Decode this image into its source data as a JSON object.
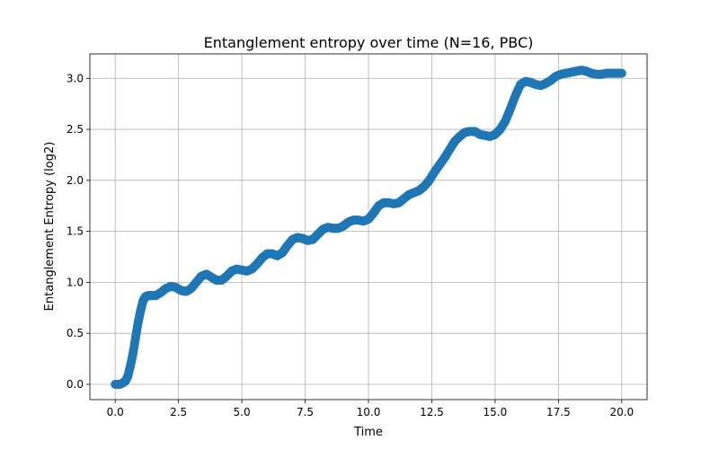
{
  "chart_data": {
    "type": "scatter",
    "title": "Entanglement entropy over time (N=16, PBC)",
    "xlabel": "Time",
    "ylabel": "Entanglement Entropy (log2)",
    "xlim": [
      -1.0,
      21.0
    ],
    "ylim": [
      -0.15,
      3.24
    ],
    "xticks": [
      0.0,
      2.5,
      5.0,
      7.5,
      10.0,
      12.5,
      15.0,
      17.5,
      20.0
    ],
    "xtick_labels": [
      "0.0",
      "2.5",
      "5.0",
      "7.5",
      "10.0",
      "12.5",
      "15.0",
      "17.5",
      "20.0"
    ],
    "yticks": [
      0.0,
      0.5,
      1.0,
      1.5,
      2.0,
      2.5,
      3.0
    ],
    "ytick_labels": [
      "0.0",
      "0.5",
      "1.0",
      "1.5",
      "2.0",
      "2.5",
      "3.0"
    ],
    "grid": true,
    "color": "#1f77b4",
    "series": [
      {
        "x": [
          0.0,
          0.2,
          0.4,
          0.5,
          0.6,
          0.7,
          0.8,
          0.9,
          1.0,
          1.1,
          1.2,
          1.3,
          1.4,
          1.6,
          1.8,
          2.0,
          2.2,
          2.4,
          2.6,
          2.8,
          3.0,
          3.2,
          3.4,
          3.6,
          3.8,
          4.0,
          4.2,
          4.4,
          4.6,
          4.8,
          5.0,
          5.2,
          5.4,
          5.6,
          5.8,
          6.0,
          6.2,
          6.4,
          6.6,
          6.8,
          7.0,
          7.2,
          7.4,
          7.6,
          7.8,
          8.0,
          8.2,
          8.4,
          8.6,
          8.8,
          9.0,
          9.2,
          9.4,
          9.6,
          9.8,
          10.0,
          10.2,
          10.4,
          10.6,
          10.8,
          11.0,
          11.2,
          11.4,
          11.6,
          11.8,
          12.0,
          12.2,
          12.4,
          12.6,
          12.8,
          13.0,
          13.2,
          13.4,
          13.6,
          13.8,
          14.0,
          14.2,
          14.4,
          14.6,
          14.8,
          15.0,
          15.2,
          15.4,
          15.6,
          15.8,
          16.0,
          16.2,
          16.4,
          16.6,
          16.8,
          17.0,
          17.2,
          17.4,
          17.6,
          17.8,
          18.0,
          18.2,
          18.4,
          18.6,
          18.8,
          19.0,
          19.2,
          19.4,
          19.6,
          19.8,
          20.0
        ],
        "y": [
          0.0,
          0.0,
          0.03,
          0.08,
          0.18,
          0.3,
          0.45,
          0.6,
          0.72,
          0.82,
          0.86,
          0.87,
          0.87,
          0.87,
          0.9,
          0.94,
          0.96,
          0.95,
          0.92,
          0.91,
          0.94,
          1.0,
          1.06,
          1.08,
          1.05,
          1.02,
          1.02,
          1.06,
          1.11,
          1.13,
          1.12,
          1.11,
          1.13,
          1.18,
          1.24,
          1.28,
          1.28,
          1.26,
          1.29,
          1.36,
          1.42,
          1.44,
          1.43,
          1.41,
          1.42,
          1.47,
          1.52,
          1.54,
          1.53,
          1.53,
          1.55,
          1.59,
          1.61,
          1.61,
          1.6,
          1.62,
          1.68,
          1.75,
          1.78,
          1.78,
          1.77,
          1.78,
          1.82,
          1.86,
          1.88,
          1.9,
          1.94,
          2.0,
          2.08,
          2.15,
          2.22,
          2.3,
          2.38,
          2.43,
          2.47,
          2.48,
          2.48,
          2.45,
          2.44,
          2.43,
          2.45,
          2.5,
          2.58,
          2.7,
          2.83,
          2.94,
          2.97,
          2.96,
          2.94,
          2.93,
          2.95,
          2.98,
          3.02,
          3.04,
          3.05,
          3.06,
          3.07,
          3.08,
          3.07,
          3.05,
          3.04,
          3.04,
          3.05,
          3.05,
          3.05,
          3.05
        ]
      }
    ]
  }
}
